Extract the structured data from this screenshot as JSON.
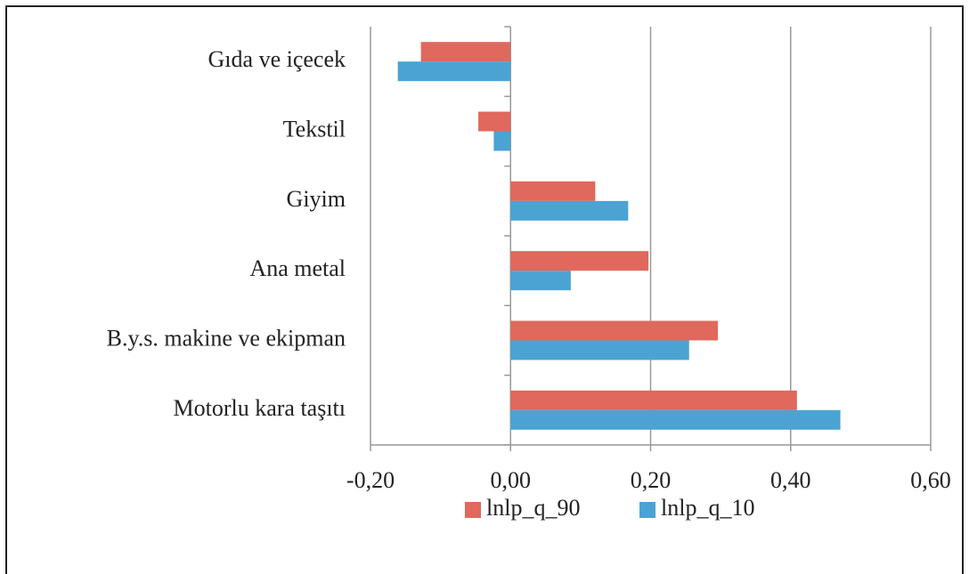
{
  "chart_data": {
    "type": "bar",
    "horizontal": true,
    "categories": [
      "Gıda ve içecek",
      "Tekstil",
      "Giyim",
      "Ana metal",
      "B.y.s. makine ve ekipman",
      "Motorlu kara taşıtı"
    ],
    "series": [
      {
        "name": "lnlp_q_90",
        "color": "#e0685c",
        "values": [
          -0.128,
          -0.046,
          0.121,
          0.197,
          0.296,
          0.409
        ]
      },
      {
        "name": "lnlp_q_10",
        "color": "#4ba3d3",
        "values": [
          -0.161,
          -0.024,
          0.168,
          0.086,
          0.255,
          0.471
        ]
      }
    ],
    "xlim": [
      -0.2,
      0.6
    ],
    "xticks": [
      {
        "value": -0.2,
        "label": "-0,20"
      },
      {
        "value": 0,
        "label": "0,00"
      },
      {
        "value": 0.2,
        "label": "0,20"
      },
      {
        "value": 0.4,
        "label": "0,40"
      },
      {
        "value": 0.6,
        "label": "0,60"
      }
    ],
    "grid": true
  }
}
